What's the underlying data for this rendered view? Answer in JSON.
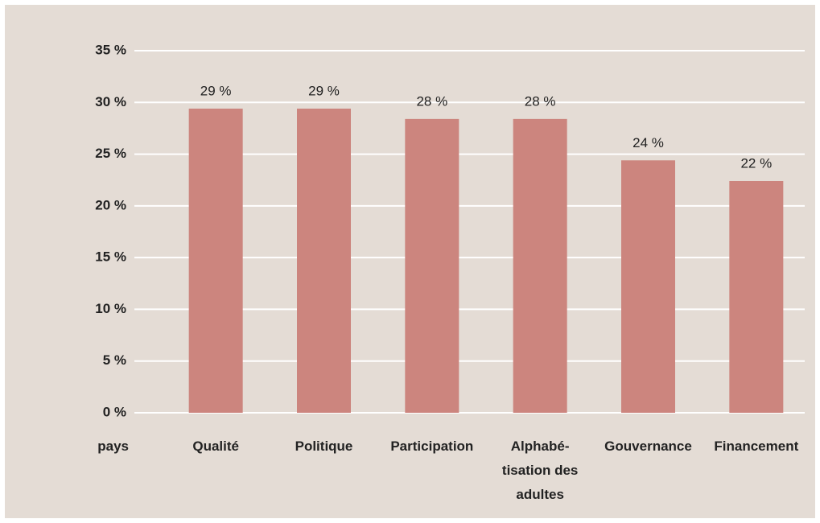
{
  "chart_data": {
    "type": "bar",
    "xlabel": "pays",
    "categories": [
      "Qualité",
      "Politique",
      "Participation",
      "Alphabé-\ntisation des\nadultes",
      "Gouvernance",
      "Financement"
    ],
    "values": [
      29.4,
      29.4,
      28.4,
      28.4,
      24.4,
      22.4
    ],
    "value_labels": [
      "29 %",
      "29 %",
      "28 %",
      "28 %",
      "24 %",
      "22 %"
    ],
    "color": "#cc857e",
    "ylim": [
      0,
      35
    ],
    "yticks": [
      {
        "value": 0,
        "label": "0 %"
      },
      {
        "value": 5,
        "label": "5 %"
      },
      {
        "value": 10,
        "label": "10 %"
      },
      {
        "value": 15,
        "label": "15 %"
      },
      {
        "value": 20,
        "label": "20 %"
      },
      {
        "value": 25,
        "label": "25 %"
      },
      {
        "value": 30,
        "label": "30 %"
      },
      {
        "value": 35,
        "label": "35 %"
      }
    ],
    "grid": true
  }
}
